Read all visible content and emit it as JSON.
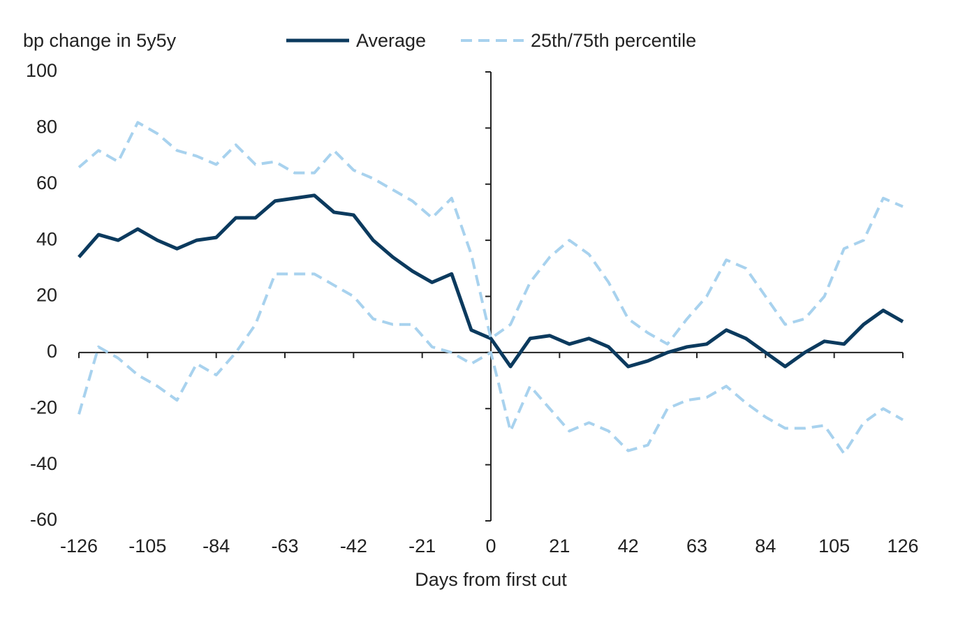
{
  "chart_data": {
    "type": "line",
    "y_axis_label": "bp change in 5y5y",
    "x_axis_label": "Days from first cut",
    "xlim": [
      -126,
      126
    ],
    "ylim": [
      -60,
      100
    ],
    "xticks": [
      -126,
      -105,
      -84,
      -63,
      -42,
      -21,
      0,
      21,
      42,
      63,
      84,
      105,
      126
    ],
    "yticks": [
      100,
      80,
      60,
      40,
      20,
      0,
      -20,
      -40,
      -60
    ],
    "grid": false,
    "x": [
      -126,
      -120,
      -114,
      -108,
      -102,
      -96,
      -90,
      -84,
      -78,
      -72,
      -66,
      -60,
      -54,
      -48,
      -42,
      -36,
      -30,
      -24,
      -18,
      -12,
      -6,
      0,
      6,
      12,
      18,
      24,
      30,
      36,
      42,
      48,
      54,
      60,
      66,
      72,
      78,
      84,
      90,
      96,
      102,
      108,
      114,
      120,
      126
    ],
    "series": [
      {
        "name": "Average",
        "color": "#0b3a5e",
        "dashed": false,
        "values": [
          34,
          42,
          40,
          44,
          40,
          37,
          40,
          41,
          48,
          48,
          54,
          55,
          56,
          50,
          49,
          40,
          34,
          29,
          25,
          28,
          8,
          5,
          -5,
          5,
          6,
          3,
          5,
          2,
          -5,
          -3,
          0,
          2,
          3,
          8,
          5,
          0,
          -5,
          0,
          4,
          3,
          10,
          15,
          11
        ]
      },
      {
        "name": "25th/75th percentile",
        "color": "#a8d2ee",
        "dashed": true,
        "upper": [
          66,
          72,
          68,
          82,
          78,
          72,
          70,
          67,
          74,
          67,
          68,
          64,
          64,
          72,
          65,
          62,
          58,
          54,
          48,
          55,
          35,
          5,
          10,
          25,
          34,
          40,
          35,
          25,
          12,
          7,
          3,
          12,
          20,
          33,
          30,
          20,
          10,
          12,
          20,
          37,
          40,
          55,
          52
        ],
        "lower": [
          -22,
          2,
          -2,
          -8,
          -12,
          -17,
          -4,
          -8,
          0,
          10,
          28,
          28,
          28,
          24,
          20,
          12,
          10,
          10,
          2,
          0,
          -4,
          0,
          -28,
          -12,
          -20,
          -28,
          -25,
          -28,
          -35,
          -33,
          -20,
          -17,
          -16,
          -12,
          -18,
          -23,
          -27,
          -27,
          -26,
          -36,
          -25,
          -20,
          -24
        ]
      }
    ]
  }
}
